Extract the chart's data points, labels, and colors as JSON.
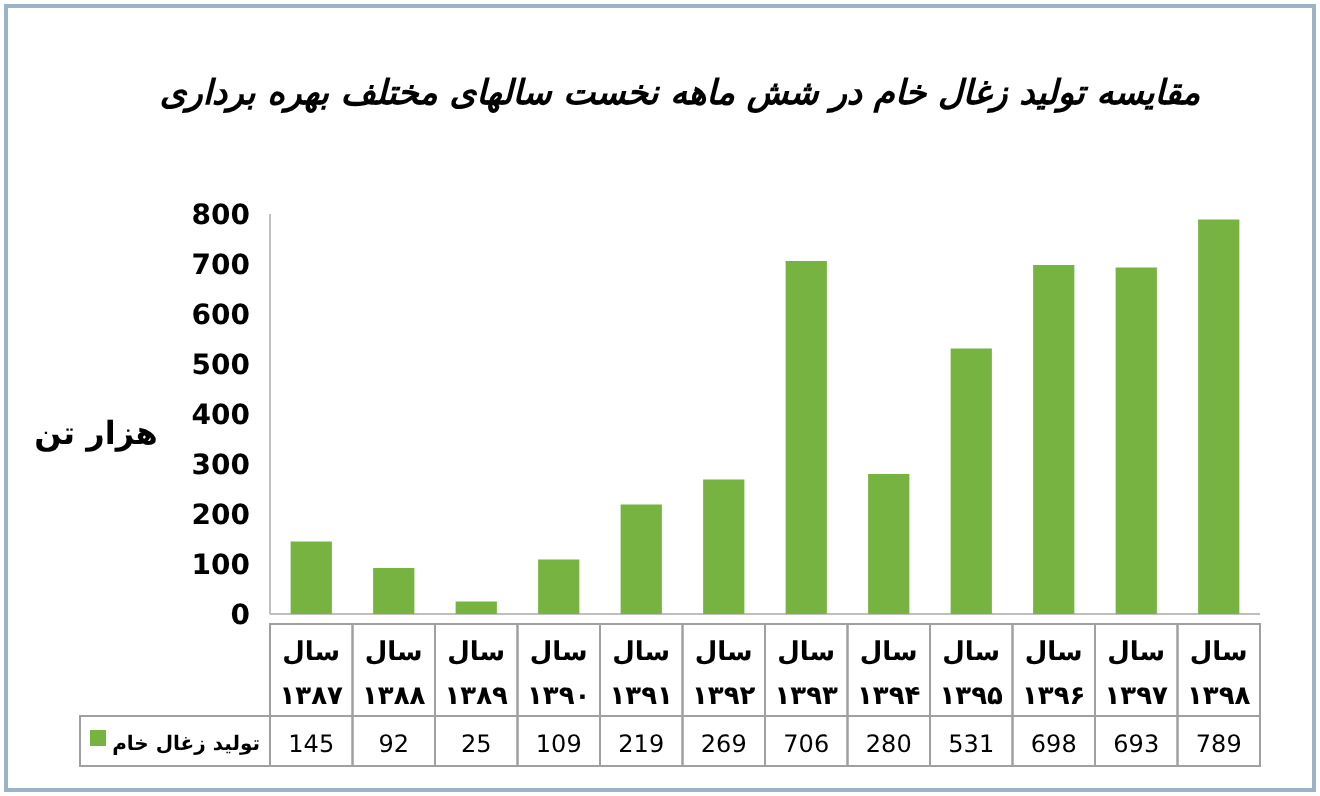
{
  "chart_data": {
    "type": "bar",
    "title": "مقایسه تولید زغال خام در شش ماهه نخست سالهای مختلف بهره برداری",
    "ylabel": "هزار تن",
    "categories": [
      "سال ۱۳۸۷",
      "سال ۱۳۸۸",
      "سال ۱۳۸۹",
      "سال ۱۳۹۰",
      "سال ۱۳۹۱",
      "سال ۱۳۹۲",
      "سال ۱۳۹۳",
      "سال ۱۳۹۴",
      "سال ۱۳۹۵",
      "سال ۱۳۹۶",
      "سال ۱۳۹۷",
      "سال ۱۳۹۸"
    ],
    "series": [
      {
        "name": "تولید زغال خام",
        "color": "#77b341",
        "values": [
          145,
          92,
          25,
          109,
          219,
          269,
          706,
          280,
          531,
          698,
          693,
          789
        ]
      }
    ],
    "ylim": [
      0,
      800
    ],
    "yticks": [
      0,
      100,
      200,
      300,
      400,
      500,
      600,
      700,
      800
    ],
    "data_labels": true,
    "legend": "bottom"
  }
}
